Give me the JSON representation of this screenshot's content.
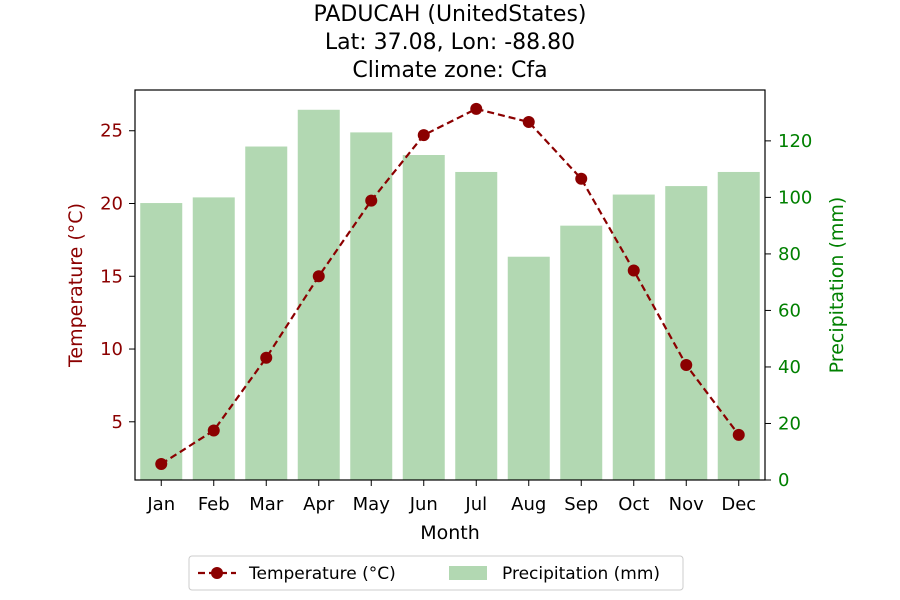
{
  "chart_data": {
    "type": "bar+line",
    "title_lines": [
      "PADUCAH (UnitedStates)",
      "Lat: 37.08, Lon: -88.80",
      "Climate zone: Cfa"
    ],
    "xlabel": "Month",
    "categories": [
      "Jan",
      "Feb",
      "Mar",
      "Apr",
      "May",
      "Jun",
      "Jul",
      "Aug",
      "Sep",
      "Oct",
      "Nov",
      "Dec"
    ],
    "temperature": {
      "name": "Temperature (°C)",
      "axis_label": "Temperature (°C)",
      "color": "#8b0000",
      "values": [
        2.1,
        4.4,
        9.4,
        15.0,
        20.2,
        24.7,
        26.5,
        25.6,
        21.7,
        15.4,
        8.9,
        4.1
      ],
      "ylim": [
        1.0,
        27.8
      ],
      "ticks": [
        5,
        10,
        15,
        20,
        25
      ]
    },
    "precipitation": {
      "name": "Precipitation (mm)",
      "axis_label": "Precipitation (mm)",
      "color": "#b2d8b2",
      "axis_color": "#008000",
      "values": [
        98,
        100,
        118,
        131,
        123,
        115,
        109,
        79,
        90,
        101,
        104,
        109
      ],
      "ylim": [
        0,
        138
      ],
      "ticks": [
        0,
        20,
        40,
        60,
        80,
        100,
        120
      ]
    },
    "legend_placement": "bottom-center",
    "grid": false
  }
}
